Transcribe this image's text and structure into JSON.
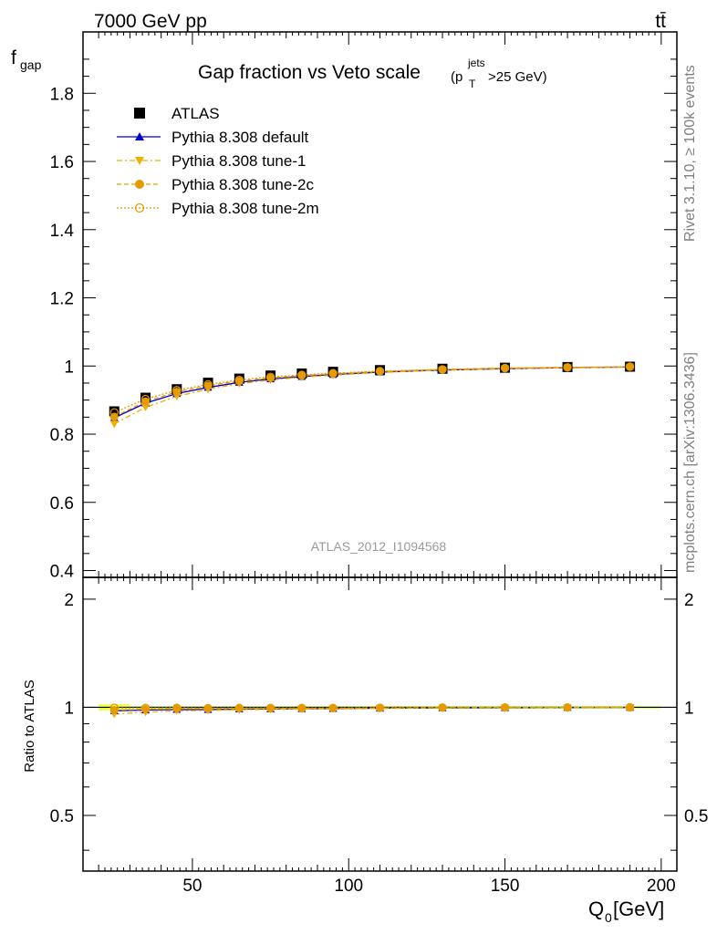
{
  "header": {
    "process": "7000 GeV pp",
    "final_state": "tt̄",
    "title_main": "Gap fraction vs Veto scale",
    "title_p": "(p",
    "title_sub": "T",
    "title_sup": "jets",
    "title_tail": ">25 GeV)",
    "rivet": "Rivet 3.1.10, ≥ 100k events",
    "mcplots": "mcplots.cern.ch [arXiv:1306.3436]",
    "analysis_id": "ATLAS_2012_I1094568"
  },
  "legend": [
    {
      "label": "ATLAS",
      "color": "#000000",
      "marker": "square"
    },
    {
      "label": "Pythia 8.308 default",
      "color": "#0000cc",
      "marker": "triangle-up",
      "line": "solid"
    },
    {
      "label": "Pythia 8.308 tune-1",
      "color": "#f0b000",
      "marker": "triangle-down",
      "line": "dashdot"
    },
    {
      "label": "Pythia 8.308 tune-2c",
      "color": "#e69a00",
      "marker": "circle",
      "line": "dashed"
    },
    {
      "label": "Pythia 8.308 tune-2m",
      "color": "#e69a00",
      "marker": "open-circle",
      "line": "dotted"
    }
  ],
  "chart_data": {
    "type": "line",
    "xlabel": "Q",
    "xlabel_sub": "0",
    "xlabel_unit": " [GeV]",
    "ylabel": "f",
    "ylabel_sub": "gap",
    "ratio_ylabel": "Ratio to ATLAS",
    "xlim": [
      15,
      205
    ],
    "ylim": [
      0.38,
      1.98
    ],
    "ratio_ylim": [
      0.35,
      2.3
    ],
    "ratio_log": true,
    "x_ticks": [
      50,
      100,
      150,
      200
    ],
    "y_ticks": [
      0.4,
      0.6,
      0.8,
      1.0,
      1.2,
      1.4,
      1.6,
      1.8
    ],
    "y_tick_labels": [
      "0.4",
      "0.6",
      "0.8",
      "1",
      "1.2",
      "1.4",
      "1.6",
      "1.8"
    ],
    "ratio_ticks": [
      0.5,
      1,
      2
    ],
    "ratio_tick_labels": [
      "0.5",
      "1",
      "2"
    ],
    "x": [
      25,
      35,
      45,
      55,
      65,
      75,
      85,
      95,
      110,
      130,
      150,
      170,
      190
    ],
    "series": [
      {
        "name": "ATLAS",
        "values": [
          0.867,
          0.907,
          0.932,
          0.951,
          0.963,
          0.972,
          0.978,
          0.983,
          0.988,
          0.992,
          0.995,
          0.997,
          0.998
        ]
      },
      {
        "name": "Pythia 8.308 default",
        "values": [
          0.848,
          0.891,
          0.919,
          0.937,
          0.952,
          0.962,
          0.969,
          0.975,
          0.982,
          0.988,
          0.992,
          0.995,
          0.997
        ]
      },
      {
        "name": "Pythia 8.308 tune-1",
        "values": [
          0.83,
          0.879,
          0.911,
          0.932,
          0.948,
          0.959,
          0.967,
          0.973,
          0.981,
          0.988,
          0.992,
          0.995,
          0.997
        ]
      },
      {
        "name": "Pythia 8.308 tune-2c",
        "values": [
          0.851,
          0.896,
          0.924,
          0.942,
          0.956,
          0.965,
          0.972,
          0.977,
          0.984,
          0.99,
          0.994,
          0.996,
          0.998
        ]
      },
      {
        "name": "Pythia 8.308 tune-2m",
        "values": [
          0.864,
          0.903,
          0.929,
          0.946,
          0.959,
          0.968,
          0.974,
          0.979,
          0.985,
          0.99,
          0.994,
          0.996,
          0.998
        ]
      }
    ],
    "data_band_color": "#ccff66"
  }
}
